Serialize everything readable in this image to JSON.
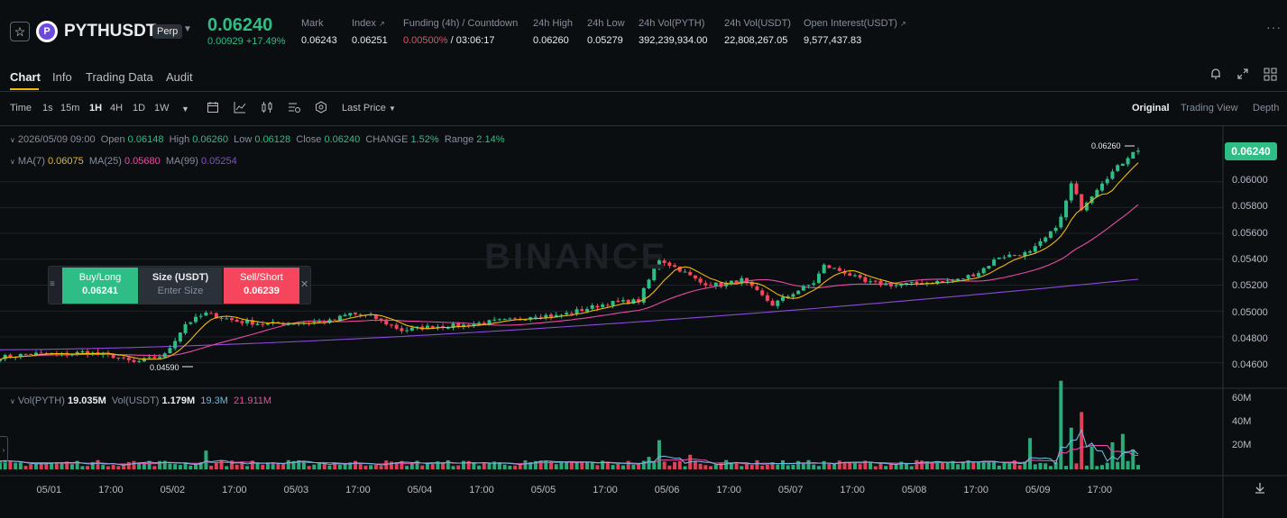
{
  "header": {
    "symbol": "PYTHUSDT",
    "contract_type": "Perp",
    "last_price": "0.06240",
    "change": "0.00929 +17.49%",
    "stats": [
      {
        "label": "Mark",
        "value": "0.06243"
      },
      {
        "label": "Index",
        "value": "0.06251"
      },
      {
        "label": "Funding (4h) / Countdown",
        "value_funding": "0.00500%",
        "value_countdown": "/ 03:06:17"
      },
      {
        "label": "24h High",
        "value": "0.06260"
      },
      {
        "label": "24h Low",
        "value": "0.05279"
      },
      {
        "label": "24h Vol(PYTH)",
        "value": "392,239,934.00"
      },
      {
        "label": "24h Vol(USDT)",
        "value": "22,808,267.05"
      },
      {
        "label": "Open Interest(USDT)",
        "value": "9,577,437.83"
      }
    ],
    "colors": {
      "up": "#2ebd85",
      "down": "#f6465d",
      "accent": "#f0b90b"
    }
  },
  "tabs": [
    "Chart",
    "Info",
    "Trading Data",
    "Audit"
  ],
  "toolbar": {
    "time_label": "Time",
    "intervals": [
      "1s",
      "15m",
      "1H",
      "4H",
      "1D",
      "1W"
    ],
    "selected_interval": "1H",
    "price_type": "Last Price",
    "views": [
      "Original",
      "Trading View",
      "Depth"
    ],
    "selected_view": "Original"
  },
  "legend": {
    "date": "2026/05/09 09:00",
    "open_label": "Open",
    "open": "0.06148",
    "high_label": "High",
    "high": "0.06260",
    "low_label": "Low",
    "low": "0.06128",
    "close_label": "Close",
    "close": "0.06240",
    "change_label": "CHANGE",
    "change": "1.52%",
    "range_label": "Range",
    "range": "2.14%",
    "ma7_label": "MA(7)",
    "ma7": "0.06075",
    "ma25_label": "MA(25)",
    "ma25": "0.05680",
    "ma99_label": "MA(99)",
    "ma99": "0.05254"
  },
  "volume_legend": {
    "vol_pyth_label": "Vol(PYTH)",
    "vol_pyth": "19.035M",
    "vol_usdt_label": "Vol(USDT)",
    "vol_usdt": "1.179M",
    "ma1": "19.3M",
    "ma2": "21.911M"
  },
  "order_widget": {
    "buy_label": "Buy/Long",
    "buy_price": "0.06241",
    "size_label": "Size (USDT)",
    "size_placeholder": "Enter Size",
    "sell_label": "Sell/Short",
    "sell_price": "0.06239"
  },
  "price_badge": "0.06240",
  "high_marker": "0.06260",
  "low_marker": "0.04590",
  "watermark": "BINANCE",
  "chart_data": {
    "type": "candlestick",
    "y_ticks": [
      "0.06000",
      "0.05800",
      "0.05600",
      "0.05400",
      "0.05200",
      "0.05000",
      "0.04800",
      "0.04600"
    ],
    "ylim": [
      0.0443,
      0.0643
    ],
    "volume_ticks": [
      "60M",
      "40M",
      "20M"
    ],
    "x_ticks": [
      "05/01",
      "17:00",
      "05/02",
      "17:00",
      "05/03",
      "17:00",
      "05/04",
      "17:00",
      "05/05",
      "17:00",
      "05/06",
      "17:00",
      "05/07",
      "17:00",
      "05/08",
      "17:00",
      "05/09",
      "17:00"
    ],
    "close_path": [
      [
        0,
        0.0464
      ],
      [
        6,
        0.0467
      ],
      [
        12,
        0.0466
      ],
      [
        16,
        0.0468
      ],
      [
        22,
        0.0465
      ],
      [
        26,
        0.046
      ],
      [
        32,
        0.0466
      ],
      [
        36,
        0.049
      ],
      [
        40,
        0.0498
      ],
      [
        46,
        0.0492
      ],
      [
        52,
        0.049
      ],
      [
        58,
        0.0491
      ],
      [
        64,
        0.0492
      ],
      [
        68,
        0.0498
      ],
      [
        72,
        0.0496
      ],
      [
        78,
        0.0485
      ],
      [
        84,
        0.0488
      ],
      [
        90,
        0.0489
      ],
      [
        96,
        0.0492
      ],
      [
        100,
        0.0493
      ],
      [
        104,
        0.0497
      ],
      [
        108,
        0.0496
      ],
      [
        112,
        0.05
      ],
      [
        118,
        0.0506
      ],
      [
        124,
        0.0508
      ],
      [
        128,
        0.054
      ],
      [
        132,
        0.0532
      ],
      [
        136,
        0.0522
      ],
      [
        140,
        0.052
      ],
      [
        144,
        0.0524
      ],
      [
        150,
        0.0505
      ],
      [
        154,
        0.0514
      ],
      [
        158,
        0.0522
      ],
      [
        160,
        0.0535
      ],
      [
        164,
        0.053
      ],
      [
        168,
        0.0522
      ],
      [
        174,
        0.052
      ],
      [
        180,
        0.0522
      ],
      [
        186,
        0.0524
      ],
      [
        190,
        0.053
      ],
      [
        194,
        0.0542
      ],
      [
        200,
        0.0545
      ],
      [
        204,
        0.056
      ],
      [
        206,
        0.0572
      ],
      [
        208,
        0.0598
      ],
      [
        210,
        0.058
      ],
      [
        214,
        0.06
      ],
      [
        218,
        0.0615
      ],
      [
        220,
        0.0624
      ]
    ],
    "volume_spikes": [
      [
        26,
        8
      ],
      [
        40,
        18
      ],
      [
        126,
        12
      ],
      [
        128,
        28
      ],
      [
        134,
        14
      ],
      [
        200,
        30
      ],
      [
        206,
        85
      ],
      [
        208,
        40
      ],
      [
        210,
        55
      ],
      [
        212,
        22
      ],
      [
        216,
        26
      ],
      [
        218,
        34
      ],
      [
        220,
        19
      ]
    ]
  }
}
